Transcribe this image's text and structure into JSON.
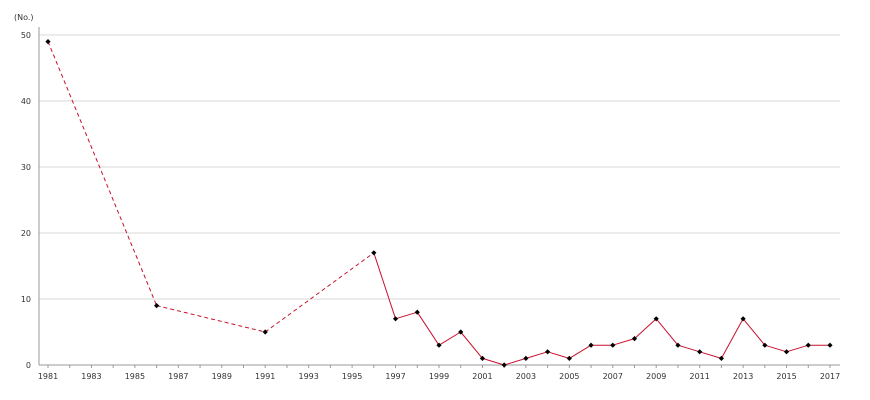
{
  "chart_data": {
    "type": "line",
    "unit_label": "(No.)",
    "x": [
      1981,
      1986,
      1991,
      1996,
      1997,
      1998,
      1999,
      2000,
      2001,
      2002,
      2003,
      2004,
      2005,
      2006,
      2007,
      2008,
      2009,
      2010,
      2011,
      2012,
      2013,
      2014,
      2015,
      2016,
      2017
    ],
    "series": [
      {
        "values": [
          49,
          9,
          5,
          17,
          7,
          8,
          3,
          5,
          1,
          0,
          1,
          2,
          1,
          3,
          3,
          4,
          7,
          3,
          2,
          1,
          7,
          3,
          2,
          3,
          3
        ],
        "color": "#c8102e",
        "dashed_until_year": 1996
      }
    ],
    "marker_color": "#000000",
    "xlim": [
      1981,
      2017
    ],
    "ylim": [
      0,
      50
    ],
    "y_ticks": [
      0,
      10,
      20,
      30,
      40,
      50
    ],
    "x_ticks": [
      1981,
      1983,
      1985,
      1987,
      1989,
      1991,
      1993,
      1995,
      1997,
      1999,
      2001,
      2003,
      2005,
      2007,
      2009,
      2011,
      2013,
      2015,
      2017
    ],
    "grid": true,
    "gridline_color": "#d9d9d9",
    "axis_color": "#999999",
    "legend": "none"
  }
}
